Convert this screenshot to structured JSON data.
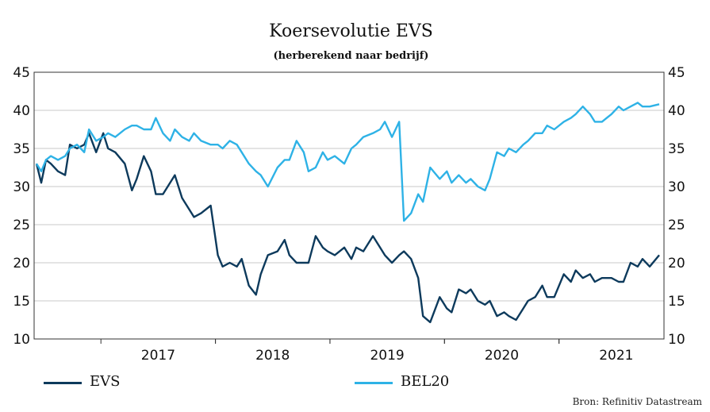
{
  "chart_data": {
    "type": "line",
    "title": "Koersevolutie EVS",
    "subtitle": "(herberekend naar bedrijf)",
    "ylim": [
      10,
      45
    ],
    "yticks": [
      10,
      15,
      20,
      25,
      30,
      35,
      40,
      45
    ],
    "yticks_right": [
      10,
      15,
      20,
      25,
      30,
      35,
      40,
      45
    ],
    "xlim": [
      "2016-06",
      "2021-12"
    ],
    "xtick_labels": [
      "2017",
      "2018",
      "2019",
      "2020",
      "2021"
    ],
    "grid": "horizontal",
    "legend_position": "bottom",
    "source": "Bron: Refinitiv Datastream",
    "series": [
      {
        "name": "EVS",
        "color": "#0d3a5c",
        "x": [
          "2016-06",
          "2016-06",
          "2016-07",
          "2016-07",
          "2016-08",
          "2016-09",
          "2016-09",
          "2016-10",
          "2016-11",
          "2016-11",
          "2016-12",
          "2017-01",
          "2017-01",
          "2017-02",
          "2017-03",
          "2017-04",
          "2017-04",
          "2017-05",
          "2017-06",
          "2017-06",
          "2017-07",
          "2017-08",
          "2017-08",
          "2017-09",
          "2017-10",
          "2017-10",
          "2017-11",
          "2017-12",
          "2018-01",
          "2018-01",
          "2018-02",
          "2018-03",
          "2018-03",
          "2018-04",
          "2018-05",
          "2018-05",
          "2018-06",
          "2018-07",
          "2018-08",
          "2018-08",
          "2018-09",
          "2018-10",
          "2018-10",
          "2018-11",
          "2018-12",
          "2018-12",
          "2019-01",
          "2019-02",
          "2019-03",
          "2019-03",
          "2019-04",
          "2019-05",
          "2019-06",
          "2019-06",
          "2019-07",
          "2019-08",
          "2019-08",
          "2019-09",
          "2019-10",
          "2019-10",
          "2019-11",
          "2019-12",
          "2020-01",
          "2020-01",
          "2020-02",
          "2020-03",
          "2020-03",
          "2020-04",
          "2020-05",
          "2020-05",
          "2020-06",
          "2020-07",
          "2020-07",
          "2020-08",
          "2020-09",
          "2020-09",
          "2020-10",
          "2020-11",
          "2020-11",
          "2020-12",
          "2021-01",
          "2021-02",
          "2021-02",
          "2021-03",
          "2021-04",
          "2021-04",
          "2021-05",
          "2021-06",
          "2021-07",
          "2021-07",
          "2021-08",
          "2021-09",
          "2021-09",
          "2021-10",
          "2021-11"
        ],
        "values": [
          33.0,
          30.5,
          33.5,
          33.0,
          32.0,
          31.5,
          35.5,
          35.0,
          35.5,
          37.0,
          34.5,
          37.0,
          35.0,
          34.5,
          33.0,
          29.5,
          31.0,
          34.0,
          32.0,
          29.0,
          29.0,
          30.5,
          31.5,
          28.5,
          27.0,
          26.0,
          26.5,
          27.5,
          21.0,
          19.5,
          20.0,
          19.5,
          20.5,
          17.0,
          15.8,
          18.5,
          21.0,
          21.5,
          23.0,
          21.0,
          20.0,
          20.0,
          20.0,
          23.5,
          22.0,
          21.5,
          21.0,
          22.0,
          20.5,
          22.0,
          21.5,
          23.5,
          22.0,
          21.0,
          20.0,
          21.0,
          21.5,
          20.5,
          18.0,
          13.0,
          12.2,
          15.5,
          14.0,
          13.5,
          16.5,
          16.0,
          16.5,
          15.0,
          14.5,
          15.0,
          13.0,
          13.5,
          13.0,
          12.5,
          14.0,
          15.0,
          15.5,
          17.0,
          15.5,
          15.5,
          18.5,
          17.5,
          19.0,
          18.0,
          18.5,
          17.5,
          18.0,
          18.0,
          17.5,
          17.5,
          20.0,
          19.5,
          20.5,
          19.5,
          21.0
        ]
      },
      {
        "name": "BEL20",
        "color": "#2eb2e6",
        "x": [
          "2016-06",
          "2016-06",
          "2016-07",
          "2016-07",
          "2016-08",
          "2016-09",
          "2016-09",
          "2016-10",
          "2016-11",
          "2016-11",
          "2016-12",
          "2017-01",
          "2017-01",
          "2017-02",
          "2017-03",
          "2017-04",
          "2017-04",
          "2017-05",
          "2017-06",
          "2017-06",
          "2017-07",
          "2017-08",
          "2017-08",
          "2017-09",
          "2017-10",
          "2017-10",
          "2017-11",
          "2017-12",
          "2018-01",
          "2018-01",
          "2018-02",
          "2018-03",
          "2018-03",
          "2018-04",
          "2018-05",
          "2018-05",
          "2018-06",
          "2018-07",
          "2018-08",
          "2018-08",
          "2018-09",
          "2018-10",
          "2018-10",
          "2018-11",
          "2018-12",
          "2018-12",
          "2019-01",
          "2019-02",
          "2019-03",
          "2019-03",
          "2019-04",
          "2019-05",
          "2019-06",
          "2019-06",
          "2019-07",
          "2019-08",
          "2019-08",
          "2019-09",
          "2019-10",
          "2019-10",
          "2019-11",
          "2019-12",
          "2020-01",
          "2020-01",
          "2020-02",
          "2020-03",
          "2020-03",
          "2020-04",
          "2020-05",
          "2020-05",
          "2020-06",
          "2020-07",
          "2020-07",
          "2020-08",
          "2020-09",
          "2020-09",
          "2020-10",
          "2020-11",
          "2020-11",
          "2020-12",
          "2021-01",
          "2021-02",
          "2021-02",
          "2021-03",
          "2021-04",
          "2021-04",
          "2021-05",
          "2021-06",
          "2021-07",
          "2021-07",
          "2021-08",
          "2021-09",
          "2021-09",
          "2021-10",
          "2021-11"
        ],
        "values": [
          33.0,
          32.0,
          33.5,
          34.0,
          33.5,
          34.0,
          35.0,
          35.5,
          34.5,
          37.5,
          36.0,
          36.5,
          37.0,
          36.5,
          37.5,
          38.0,
          38.0,
          37.5,
          37.5,
          39.0,
          37.0,
          36.0,
          37.5,
          36.5,
          36.0,
          37.0,
          36.0,
          35.5,
          35.5,
          35.0,
          36.0,
          35.5,
          34.5,
          33.0,
          32.0,
          31.5,
          30.0,
          32.5,
          33.5,
          33.5,
          36.0,
          34.5,
          32.0,
          32.5,
          34.5,
          33.5,
          34.0,
          33.0,
          35.0,
          35.5,
          36.5,
          37.0,
          37.5,
          38.5,
          36.5,
          38.5,
          25.5,
          26.5,
          29.0,
          28.0,
          32.5,
          31.0,
          32.0,
          30.5,
          31.5,
          30.5,
          31.0,
          30.0,
          29.5,
          31.0,
          34.5,
          34.0,
          35.0,
          34.5,
          35.5,
          36.0,
          37.0,
          37.0,
          38.0,
          37.5,
          38.5,
          39.0,
          39.5,
          40.5,
          39.5,
          38.5,
          38.5,
          39.5,
          40.5,
          40.0,
          40.5,
          41.0,
          40.5,
          40.5,
          40.8
        ]
      }
    ]
  },
  "legend": {
    "items": [
      {
        "name": "EVS",
        "color": "#0d3a5c"
      },
      {
        "name": "BEL20",
        "color": "#2eb2e6"
      }
    ]
  }
}
